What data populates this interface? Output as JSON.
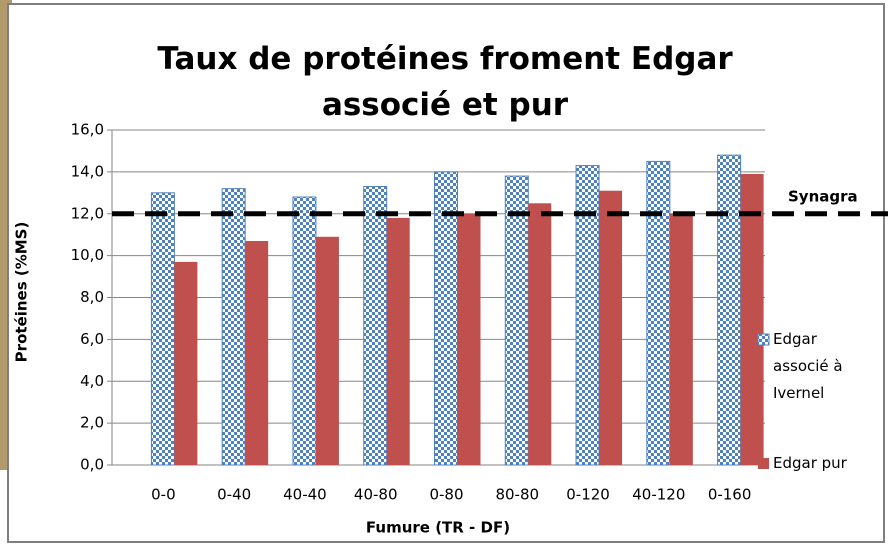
{
  "chart_data": {
    "type": "bar",
    "title": "Taux de protéines froment Edgar associé et pur",
    "x_label": "Fumure (TR - DF)",
    "y_label": "Protéines (%MS)",
    "categories": [
      "0-0",
      "0-40",
      "40-40",
      "40-80",
      "0-80",
      "80-80",
      "0-120",
      "40-120",
      "0-160"
    ],
    "series": [
      {
        "name": "Edgar associé à Ivernel",
        "color": "#4f81bd",
        "pattern": "checker",
        "values": [
          13.0,
          13.2,
          12.8,
          13.3,
          14.0,
          13.8,
          14.3,
          14.5,
          14.8
        ]
      },
      {
        "name": "Edgar pur",
        "color": "#c0504d",
        "values": [
          9.7,
          10.7,
          10.9,
          11.8,
          12.0,
          12.5,
          13.1,
          12.0,
          13.9
        ]
      }
    ],
    "ylim": [
      0,
      16
    ],
    "yticks": [
      {
        "value": 0,
        "label": "0,0"
      },
      {
        "value": 2,
        "label": "2,0"
      },
      {
        "value": 4,
        "label": "4,0"
      },
      {
        "value": 6,
        "label": "6,0"
      },
      {
        "value": 8,
        "label": "8,0"
      },
      {
        "value": 10,
        "label": "10,0"
      },
      {
        "value": 12,
        "label": "12,0"
      },
      {
        "value": 14,
        "label": "14,0"
      },
      {
        "value": 16,
        "label": "16,0"
      }
    ],
    "grid": true,
    "reference_line": {
      "value": 12,
      "label": "Synagra"
    },
    "legend": "right"
  }
}
